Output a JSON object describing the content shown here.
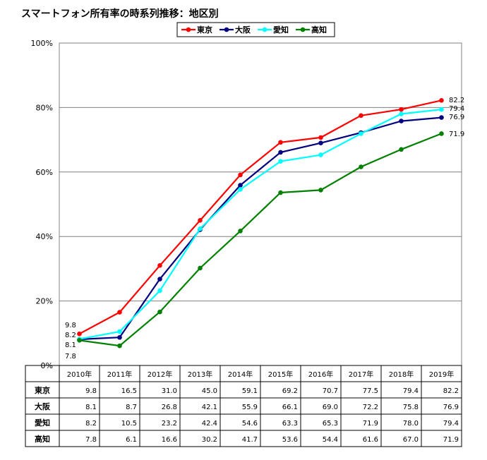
{
  "chart_data": {
    "type": "line",
    "title": "スマートフォン所有率の時系列推移：地区別",
    "categories": [
      "2010年",
      "2011年",
      "2012年",
      "2013年",
      "2014年",
      "2015年",
      "2016年",
      "2017年",
      "2018年",
      "2019年"
    ],
    "ylim": [
      0,
      100
    ],
    "yticks": [
      "0%",
      "20%",
      "40%",
      "60%",
      "80%",
      "100%"
    ],
    "grid": true,
    "legend_position": "top-center",
    "series": [
      {
        "name": "東京",
        "color": "#ff0000",
        "values": [
          9.8,
          16.5,
          31.0,
          45.0,
          59.1,
          69.2,
          70.7,
          77.5,
          79.4,
          82.2
        ]
      },
      {
        "name": "大阪",
        "color": "#000080",
        "values": [
          8.1,
          8.7,
          26.8,
          42.1,
          55.9,
          66.1,
          69.0,
          72.2,
          75.8,
          76.9
        ]
      },
      {
        "name": "愛知",
        "color": "#00ffff",
        "values": [
          8.2,
          10.5,
          23.2,
          42.4,
          54.6,
          63.3,
          65.3,
          71.9,
          78.0,
          79.4
        ]
      },
      {
        "name": "高知",
        "color": "#008000",
        "values": [
          7.8,
          6.1,
          16.6,
          30.2,
          41.7,
          53.6,
          54.4,
          61.6,
          67.0,
          71.9
        ]
      }
    ],
    "start_labels": [
      "9.8",
      "8.2",
      "8.1",
      "7.8"
    ],
    "end_labels": [
      "82.2",
      "79.4",
      "76.9",
      "71.9"
    ],
    "table": {
      "rows": [
        {
          "label": "東京",
          "values": [
            "9.8",
            "16.5",
            "31.0",
            "45.0",
            "59.1",
            "69.2",
            "70.7",
            "77.5",
            "79.4",
            "82.2"
          ]
        },
        {
          "label": "大阪",
          "values": [
            "8.1",
            "8.7",
            "26.8",
            "42.1",
            "55.9",
            "66.1",
            "69.0",
            "72.2",
            "75.8",
            "76.9"
          ]
        },
        {
          "label": "愛知",
          "values": [
            "8.2",
            "10.5",
            "23.2",
            "42.4",
            "54.6",
            "63.3",
            "65.3",
            "71.9",
            "78.0",
            "79.4"
          ]
        },
        {
          "label": "高知",
          "values": [
            "7.8",
            "6.1",
            "16.6",
            "30.2",
            "41.7",
            "53.6",
            "54.4",
            "61.6",
            "67.0",
            "71.9"
          ]
        }
      ]
    }
  }
}
